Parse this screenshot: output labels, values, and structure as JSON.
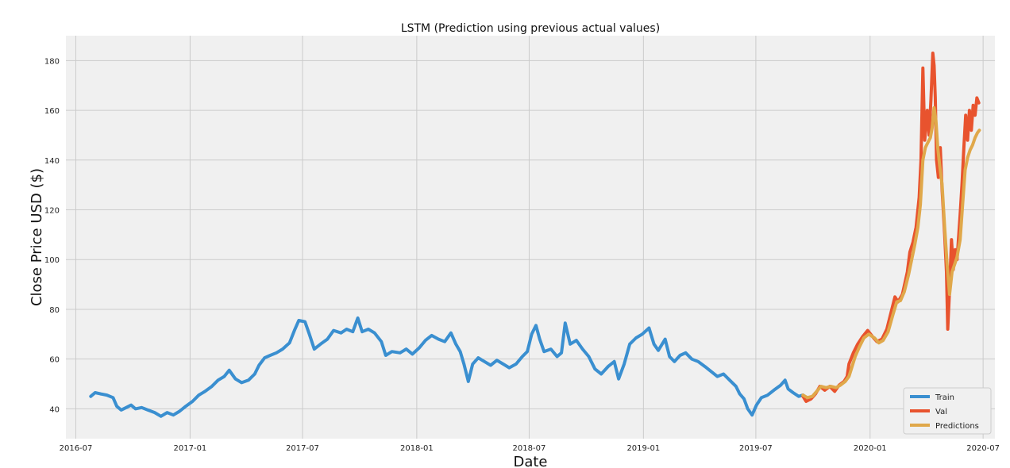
{
  "chart_data": {
    "type": "line",
    "title": "LSTM (Prediction using previous actual values)",
    "xlabel": "Date",
    "ylabel": "Close Price USD ($)",
    "xlim": [
      "2016-06-15",
      "2020-07-20"
    ],
    "ylim": [
      28,
      190
    ],
    "x_ticks": [
      "2016-07",
      "2017-01",
      "2017-07",
      "2018-01",
      "2018-07",
      "2019-01",
      "2019-07",
      "2020-01",
      "2020-07"
    ],
    "y_ticks": [
      40,
      60,
      80,
      100,
      120,
      140,
      160,
      180
    ],
    "grid": true,
    "legend_position": "lower-right",
    "background": "#f0f0f0",
    "series": [
      {
        "name": "Train",
        "color": "#3a8fd0",
        "points": [
          [
            "2016-07-25",
            45
          ],
          [
            "2016-08-01",
            46.5
          ],
          [
            "2016-08-10",
            46
          ],
          [
            "2016-08-20",
            45.5
          ],
          [
            "2016-08-30",
            44.5
          ],
          [
            "2016-09-05",
            41
          ],
          [
            "2016-09-12",
            39.5
          ],
          [
            "2016-09-20",
            40.5
          ],
          [
            "2016-09-28",
            41.5
          ],
          [
            "2016-10-05",
            40
          ],
          [
            "2016-10-15",
            40.5
          ],
          [
            "2016-10-25",
            39.5
          ],
          [
            "2016-11-05",
            38.5
          ],
          [
            "2016-11-15",
            37
          ],
          [
            "2016-11-25",
            38.5
          ],
          [
            "2016-12-05",
            37.5
          ],
          [
            "2016-12-15",
            39
          ],
          [
            "2016-12-25",
            41
          ],
          [
            "2017-01-05",
            43
          ],
          [
            "2017-01-15",
            45.5
          ],
          [
            "2017-01-25",
            47
          ],
          [
            "2017-02-05",
            49
          ],
          [
            "2017-02-15",
            51.5
          ],
          [
            "2017-02-25",
            53
          ],
          [
            "2017-03-05",
            55.5
          ],
          [
            "2017-03-15",
            52
          ],
          [
            "2017-03-25",
            50.5
          ],
          [
            "2017-04-05",
            51.5
          ],
          [
            "2017-04-15",
            54
          ],
          [
            "2017-04-22",
            57.5
          ],
          [
            "2017-05-01",
            60.5
          ],
          [
            "2017-05-10",
            61.5
          ],
          [
            "2017-05-20",
            62.5
          ],
          [
            "2017-05-30",
            64
          ],
          [
            "2017-06-10",
            66.5
          ],
          [
            "2017-06-18",
            71.5
          ],
          [
            "2017-06-25",
            75.5
          ],
          [
            "2017-07-05",
            75
          ],
          [
            "2017-07-12",
            70
          ],
          [
            "2017-07-20",
            64
          ],
          [
            "2017-07-30",
            66
          ],
          [
            "2017-08-10",
            68
          ],
          [
            "2017-08-20",
            71.5
          ],
          [
            "2017-09-01",
            70.5
          ],
          [
            "2017-09-10",
            72
          ],
          [
            "2017-09-20",
            71
          ],
          [
            "2017-09-28",
            76.5
          ],
          [
            "2017-10-05",
            71
          ],
          [
            "2017-10-15",
            72
          ],
          [
            "2017-10-25",
            70.5
          ],
          [
            "2017-11-05",
            67
          ],
          [
            "2017-11-12",
            61.5
          ],
          [
            "2017-11-22",
            63
          ],
          [
            "2017-12-05",
            62.5
          ],
          [
            "2017-12-15",
            64
          ],
          [
            "2017-12-25",
            62
          ],
          [
            "2018-01-05",
            64.5
          ],
          [
            "2018-01-15",
            67.5
          ],
          [
            "2018-01-25",
            69.5
          ],
          [
            "2018-02-05",
            68
          ],
          [
            "2018-02-15",
            67
          ],
          [
            "2018-02-25",
            70.5
          ],
          [
            "2018-03-05",
            66
          ],
          [
            "2018-03-12",
            63
          ],
          [
            "2018-03-18",
            58
          ],
          [
            "2018-03-25",
            51
          ],
          [
            "2018-04-01",
            58
          ],
          [
            "2018-04-10",
            60.5
          ],
          [
            "2018-04-20",
            59
          ],
          [
            "2018-04-30",
            57.5
          ],
          [
            "2018-05-10",
            59.5
          ],
          [
            "2018-05-20",
            58
          ],
          [
            "2018-05-30",
            56.5
          ],
          [
            "2018-06-10",
            58
          ],
          [
            "2018-06-20",
            61
          ],
          [
            "2018-06-28",
            63
          ],
          [
            "2018-07-05",
            70
          ],
          [
            "2018-07-12",
            73.5
          ],
          [
            "2018-07-18",
            68
          ],
          [
            "2018-07-25",
            63
          ],
          [
            "2018-08-05",
            64
          ],
          [
            "2018-08-15",
            61
          ],
          [
            "2018-08-22",
            62.5
          ],
          [
            "2018-08-28",
            74.5
          ],
          [
            "2018-09-05",
            66
          ],
          [
            "2018-09-15",
            67.5
          ],
          [
            "2018-09-25",
            64
          ],
          [
            "2018-10-05",
            61
          ],
          [
            "2018-10-15",
            56
          ],
          [
            "2018-10-25",
            54
          ],
          [
            "2018-11-05",
            57
          ],
          [
            "2018-11-15",
            59
          ],
          [
            "2018-11-22",
            52
          ],
          [
            "2018-12-01",
            58
          ],
          [
            "2018-12-10",
            66
          ],
          [
            "2018-12-20",
            68.5
          ],
          [
            "2018-12-30",
            70
          ],
          [
            "2019-01-10",
            72.5
          ],
          [
            "2019-01-18",
            66
          ],
          [
            "2019-01-25",
            63.5
          ],
          [
            "2019-02-05",
            68
          ],
          [
            "2019-02-12",
            61
          ],
          [
            "2019-02-20",
            59
          ],
          [
            "2019-03-01",
            61.5
          ],
          [
            "2019-03-10",
            62.5
          ],
          [
            "2019-03-20",
            60
          ],
          [
            "2019-03-30",
            59
          ],
          [
            "2019-04-10",
            57
          ],
          [
            "2019-04-20",
            55
          ],
          [
            "2019-04-30",
            53
          ],
          [
            "2019-05-10",
            54
          ],
          [
            "2019-05-20",
            51.5
          ],
          [
            "2019-05-30",
            49
          ],
          [
            "2019-06-05",
            46
          ],
          [
            "2019-06-12",
            44
          ],
          [
            "2019-06-18",
            40
          ],
          [
            "2019-06-25",
            37.5
          ],
          [
            "2019-07-02",
            41.5
          ],
          [
            "2019-07-10",
            44.5
          ],
          [
            "2019-07-20",
            45.5
          ],
          [
            "2019-07-30",
            47.5
          ],
          [
            "2019-08-10",
            49.5
          ],
          [
            "2019-08-17",
            51.5
          ],
          [
            "2019-08-22",
            48
          ],
          [
            "2019-08-30",
            46.5
          ],
          [
            "2019-09-08",
            45
          ],
          [
            "2019-09-15",
            45.5
          ]
        ]
      },
      {
        "name": "Val",
        "color": "#e8532e",
        "points": [
          [
            "2019-09-15",
            45
          ],
          [
            "2019-09-20",
            43
          ],
          [
            "2019-09-28",
            44
          ],
          [
            "2019-10-05",
            46
          ],
          [
            "2019-10-12",
            49
          ],
          [
            "2019-10-20",
            47.5
          ],
          [
            "2019-10-28",
            49
          ],
          [
            "2019-11-05",
            47
          ],
          [
            "2019-11-12",
            49.5
          ],
          [
            "2019-11-20",
            51
          ],
          [
            "2019-11-25",
            53
          ],
          [
            "2019-11-28",
            58
          ],
          [
            "2019-12-05",
            62.5
          ],
          [
            "2019-12-12",
            66
          ],
          [
            "2019-12-20",
            69
          ],
          [
            "2019-12-28",
            71.5
          ],
          [
            "2020-01-05",
            69
          ],
          [
            "2020-01-12",
            67
          ],
          [
            "2020-01-20",
            68
          ],
          [
            "2020-01-28",
            72
          ],
          [
            "2020-02-05",
            80
          ],
          [
            "2020-02-10",
            85
          ],
          [
            "2020-02-15",
            83
          ],
          [
            "2020-02-22",
            86
          ],
          [
            "2020-03-01",
            95
          ],
          [
            "2020-03-05",
            103
          ],
          [
            "2020-03-10",
            107
          ],
          [
            "2020-03-15",
            113
          ],
          [
            "2020-03-20",
            125
          ],
          [
            "2020-03-23",
            140
          ],
          [
            "2020-03-26",
            177
          ],
          [
            "2020-03-29",
            148
          ],
          [
            "2020-04-02",
            160
          ],
          [
            "2020-04-05",
            150
          ],
          [
            "2020-04-08",
            164
          ],
          [
            "2020-04-11",
            183
          ],
          [
            "2020-04-13",
            178
          ],
          [
            "2020-04-15",
            165
          ],
          [
            "2020-04-17",
            140
          ],
          [
            "2020-04-20",
            133
          ],
          [
            "2020-04-23",
            145
          ],
          [
            "2020-04-26",
            128
          ],
          [
            "2020-04-30",
            110
          ],
          [
            "2020-05-03",
            95
          ],
          [
            "2020-05-05",
            72
          ],
          [
            "2020-05-08",
            88
          ],
          [
            "2020-05-11",
            108
          ],
          [
            "2020-05-14",
            96
          ],
          [
            "2020-05-17",
            104
          ],
          [
            "2020-05-20",
            100
          ],
          [
            "2020-05-25",
            118
          ],
          [
            "2020-05-28",
            130
          ],
          [
            "2020-05-31",
            145
          ],
          [
            "2020-06-03",
            158
          ],
          [
            "2020-06-06",
            148
          ],
          [
            "2020-06-09",
            160
          ],
          [
            "2020-06-12",
            152
          ],
          [
            "2020-06-15",
            162
          ],
          [
            "2020-06-18",
            158
          ],
          [
            "2020-06-21",
            165
          ],
          [
            "2020-06-24",
            163
          ]
        ]
      },
      {
        "name": "Predictions",
        "color": "#e0a84a",
        "points": [
          [
            "2019-09-15",
            45.5
          ],
          [
            "2019-09-22",
            44.5
          ],
          [
            "2019-09-30",
            45
          ],
          [
            "2019-10-07",
            47
          ],
          [
            "2019-10-14",
            49
          ],
          [
            "2019-10-22",
            48.5
          ],
          [
            "2019-10-30",
            49
          ],
          [
            "2019-11-07",
            48.5
          ],
          [
            "2019-11-14",
            49.5
          ],
          [
            "2019-11-22",
            51
          ],
          [
            "2019-11-28",
            53
          ],
          [
            "2019-12-03",
            57
          ],
          [
            "2019-12-08",
            61
          ],
          [
            "2019-12-15",
            65
          ],
          [
            "2019-12-22",
            68.5
          ],
          [
            "2019-12-30",
            70
          ],
          [
            "2020-01-08",
            68.5
          ],
          [
            "2020-01-15",
            66.5
          ],
          [
            "2020-01-22",
            67.5
          ],
          [
            "2020-01-30",
            71
          ],
          [
            "2020-02-07",
            78
          ],
          [
            "2020-02-13",
            83
          ],
          [
            "2020-02-19",
            83.5
          ],
          [
            "2020-02-25",
            87
          ],
          [
            "2020-03-03",
            94
          ],
          [
            "2020-03-08",
            100
          ],
          [
            "2020-03-13",
            106
          ],
          [
            "2020-03-18",
            113
          ],
          [
            "2020-03-22",
            122
          ],
          [
            "2020-03-26",
            140
          ],
          [
            "2020-03-30",
            145
          ],
          [
            "2020-04-03",
            147
          ],
          [
            "2020-04-07",
            149
          ],
          [
            "2020-04-10",
            153
          ],
          [
            "2020-04-13",
            161
          ],
          [
            "2020-04-16",
            156
          ],
          [
            "2020-04-19",
            145
          ],
          [
            "2020-04-22",
            138
          ],
          [
            "2020-04-26",
            130
          ],
          [
            "2020-04-30",
            113
          ],
          [
            "2020-05-04",
            98
          ],
          [
            "2020-05-08",
            86
          ],
          [
            "2020-05-12",
            95
          ],
          [
            "2020-05-16",
            98
          ],
          [
            "2020-05-20",
            101
          ],
          [
            "2020-05-25",
            108
          ],
          [
            "2020-05-29",
            122
          ],
          [
            "2020-06-02",
            136
          ],
          [
            "2020-06-06",
            141
          ],
          [
            "2020-06-10",
            144
          ],
          [
            "2020-06-14",
            146
          ],
          [
            "2020-06-18",
            149
          ],
          [
            "2020-06-22",
            151
          ],
          [
            "2020-06-25",
            152
          ]
        ]
      }
    ]
  }
}
